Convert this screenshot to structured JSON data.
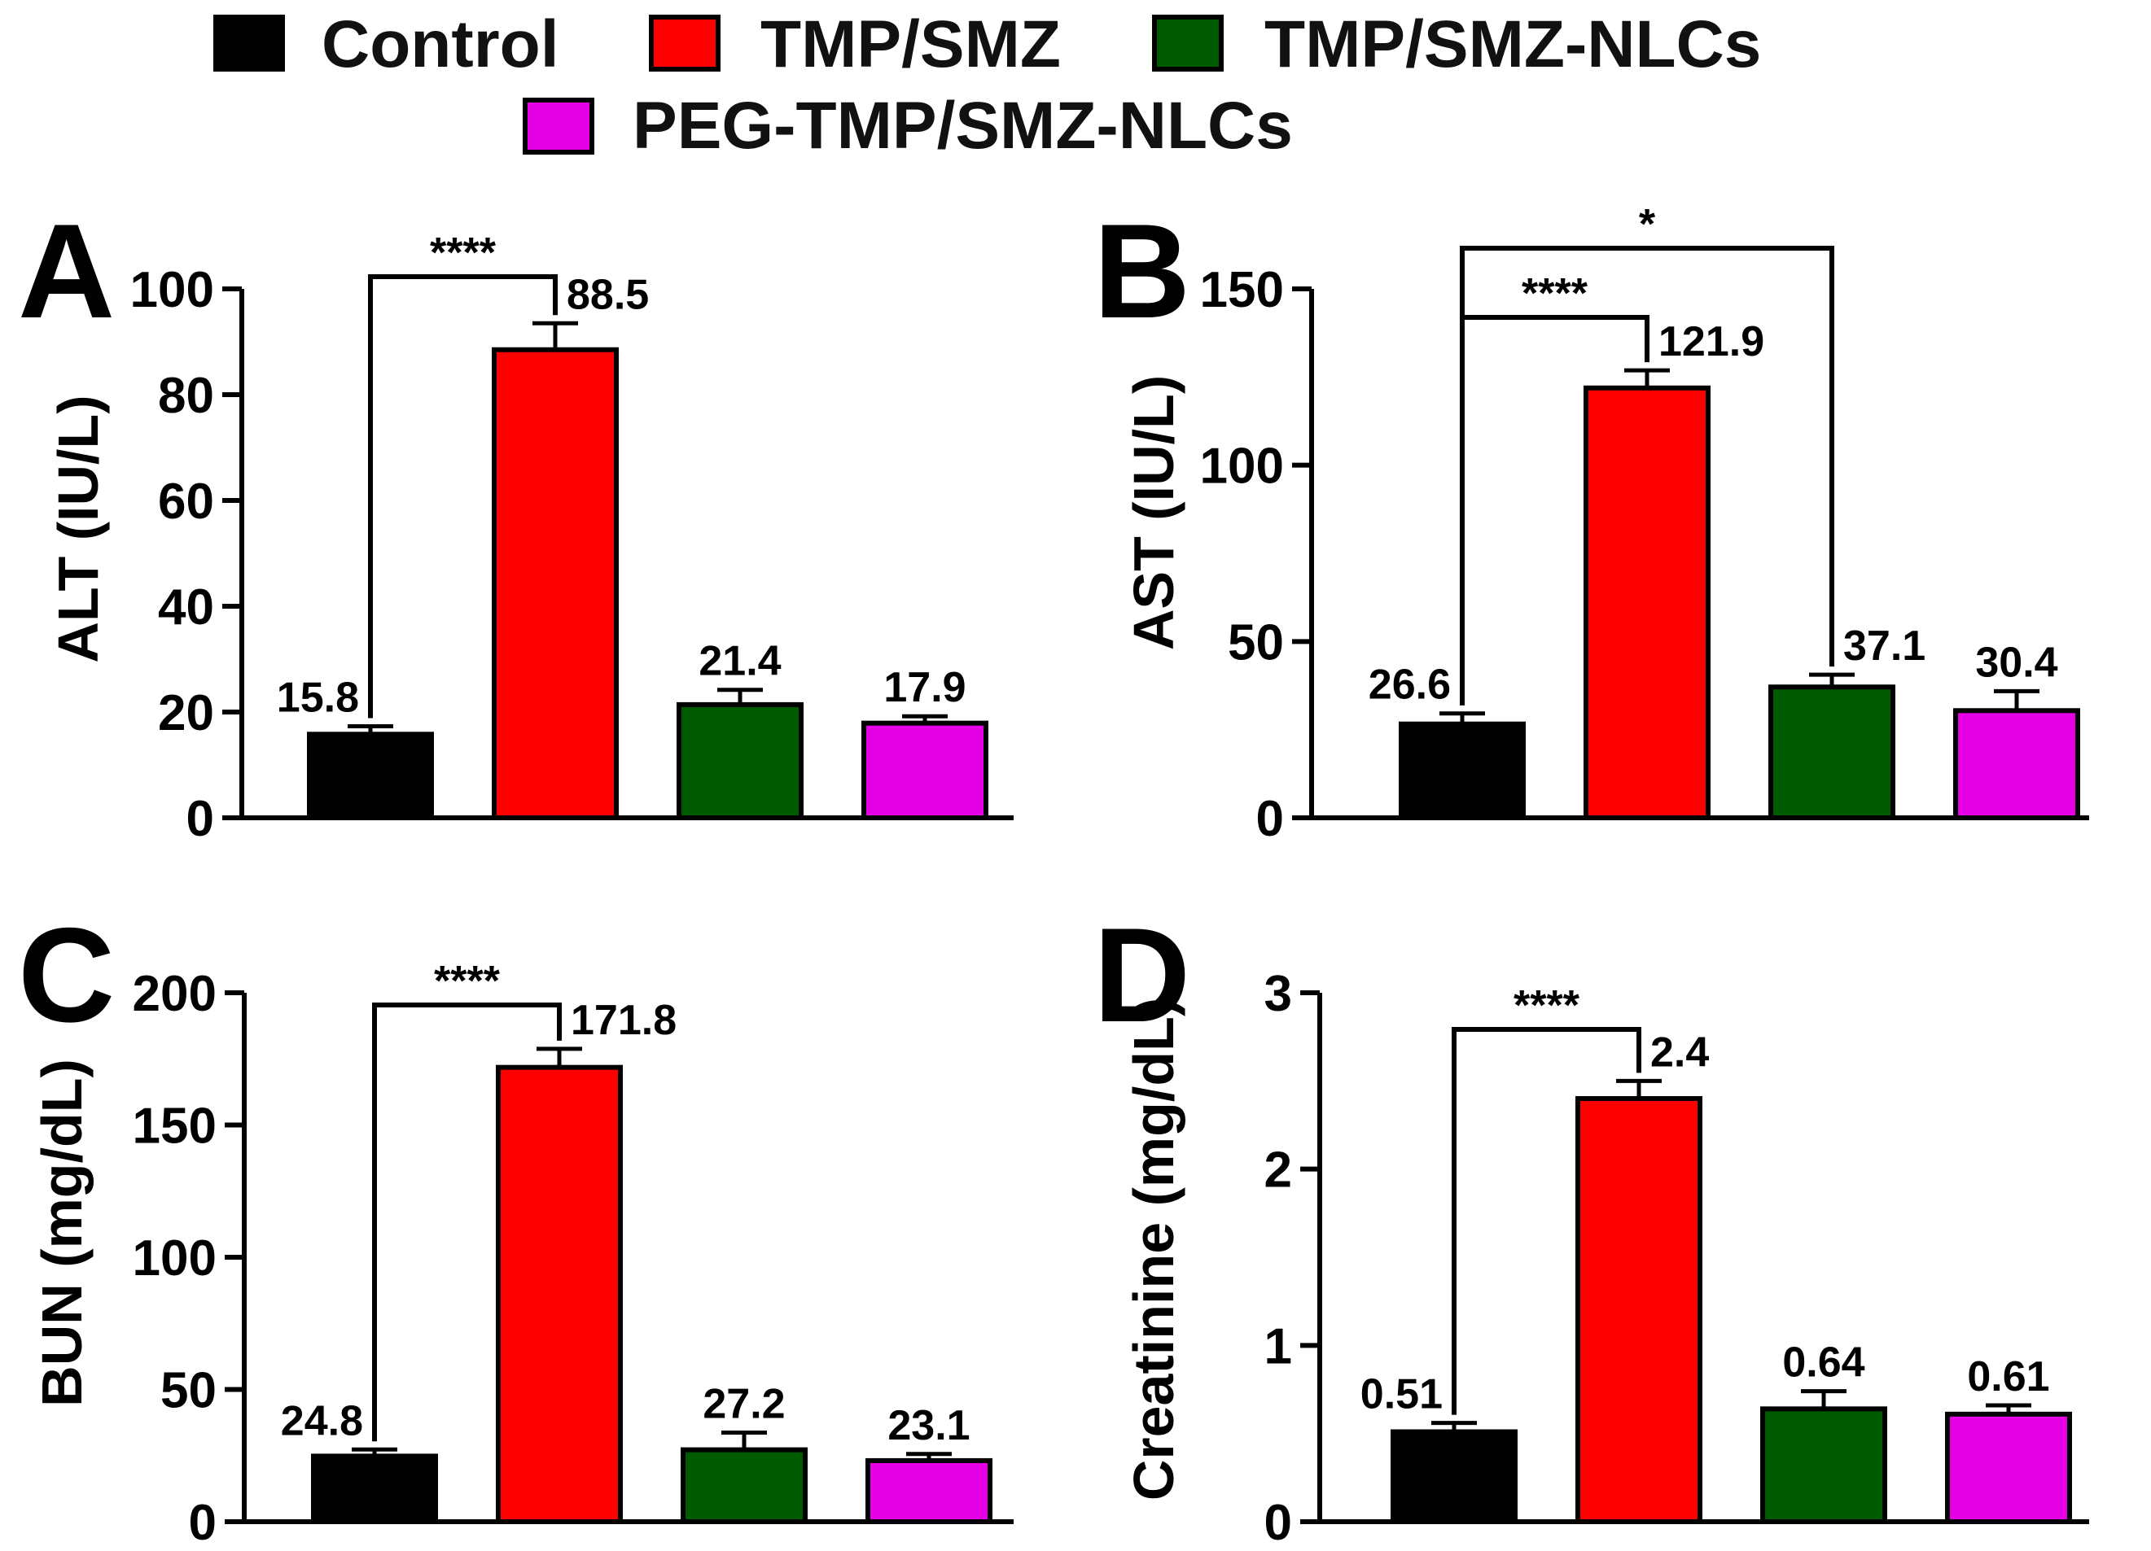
{
  "legend": {
    "items": [
      {
        "label": "Control",
        "color": "#000000"
      },
      {
        "label": "TMP/SMZ",
        "color": "#ff0000"
      },
      {
        "label": "TMP/SMZ-NLCs",
        "color": "#005a00"
      },
      {
        "label": "PEG-TMP/SMZ-NLCs",
        "color": "#e600e6"
      }
    ]
  },
  "chart_data": [
    {
      "panel": "A",
      "type": "bar",
      "categories": [
        "Control",
        "TMP/SMZ",
        "TMP/SMZ-NLCs",
        "PEG-TMP/SMZ-NLCs"
      ],
      "values": [
        15.8,
        88.5,
        21.4,
        17.9
      ],
      "errors": [
        1.5,
        5.0,
        2.8,
        1.3
      ],
      "value_labels": [
        "15.8",
        "88.5",
        "21.4",
        "17.9"
      ],
      "ylabel": "ALT (IU/L)",
      "ylim": [
        0,
        100
      ],
      "yticks": [
        0,
        20,
        40,
        60,
        80,
        100
      ],
      "significance": [
        {
          "from": 0,
          "to": 1,
          "label": "****"
        }
      ]
    },
    {
      "panel": "B",
      "type": "bar",
      "categories": [
        "Control",
        "TMP/SMZ",
        "TMP/SMZ-NLCs",
        "PEG-TMP/SMZ-NLCs"
      ],
      "values": [
        26.6,
        121.9,
        37.1,
        30.4
      ],
      "errors": [
        3.0,
        5.0,
        3.5,
        5.5
      ],
      "value_labels": [
        "26.6",
        "121.9",
        "37.1",
        "30.4"
      ],
      "ylabel": "AST (IU/L)",
      "ylim": [
        0,
        150
      ],
      "yticks": [
        0,
        50,
        100,
        150
      ],
      "significance": [
        {
          "from": 0,
          "to": 1,
          "label": "****"
        },
        {
          "from": 0,
          "to": 2,
          "label": "*"
        }
      ]
    },
    {
      "panel": "C",
      "type": "bar",
      "categories": [
        "Control",
        "TMP/SMZ",
        "TMP/SMZ-NLCs",
        "PEG-TMP/SMZ-NLCs"
      ],
      "values": [
        24.8,
        171.8,
        27.2,
        23.1
      ],
      "errors": [
        2.5,
        7.0,
        6.5,
        2.5
      ],
      "value_labels": [
        "24.8",
        "171.8",
        "27.2",
        "23.1"
      ],
      "ylabel": "BUN (mg/dL)",
      "ylim": [
        0,
        200
      ],
      "yticks": [
        0,
        50,
        100,
        150,
        200
      ],
      "significance": [
        {
          "from": 0,
          "to": 1,
          "label": "****"
        }
      ]
    },
    {
      "panel": "D",
      "type": "bar",
      "categories": [
        "Control",
        "TMP/SMZ",
        "TMP/SMZ-NLCs",
        "PEG-TMP/SMZ-NLCs"
      ],
      "values": [
        0.51,
        2.4,
        0.64,
        0.61
      ],
      "errors": [
        0.05,
        0.1,
        0.1,
        0.05
      ],
      "value_labels": [
        "0.51",
        "2.4",
        "0.64",
        "0.61"
      ],
      "ylabel": "Creatinine (mg/dL)",
      "ylim": [
        0,
        3
      ],
      "yticks": [
        0,
        1,
        2,
        3
      ],
      "significance": [
        {
          "from": 0,
          "to": 1,
          "label": "****"
        }
      ]
    }
  ]
}
